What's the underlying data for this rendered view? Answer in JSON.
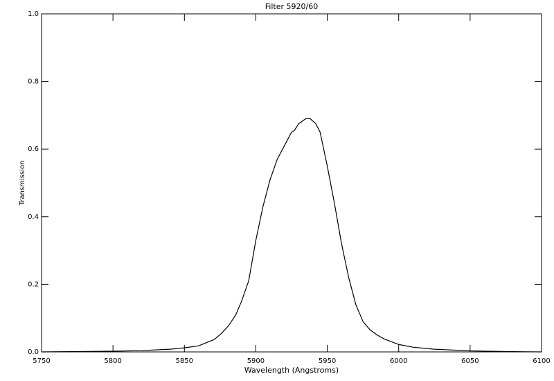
{
  "chart_data": {
    "type": "line",
    "title": "Filter 5920/60",
    "x_label": "Wavelength (Angstroms)",
    "y_label": "Transmission",
    "x": [
      5750,
      5800,
      5820,
      5840,
      5850,
      5860,
      5871,
      5876,
      5881,
      5886,
      5890,
      5895,
      5900,
      5905,
      5910,
      5915,
      5920,
      5925,
      5927,
      5930,
      5935,
      5938,
      5942,
      5945,
      5950,
      5955,
      5960,
      5965,
      5970,
      5975,
      5980,
      5985,
      5990,
      6000,
      6010,
      6025,
      6050,
      6075,
      6100
    ],
    "series": [
      {
        "name": "Transmission",
        "color": "#000000",
        "values": [
          0.0,
          0.002,
          0.004,
          0.008,
          0.012,
          0.018,
          0.037,
          0.055,
          0.078,
          0.11,
          0.15,
          0.21,
          0.33,
          0.43,
          0.51,
          0.57,
          0.61,
          0.65,
          0.655,
          0.675,
          0.69,
          0.69,
          0.675,
          0.65,
          0.55,
          0.44,
          0.32,
          0.22,
          0.14,
          0.09,
          0.065,
          0.05,
          0.038,
          0.022,
          0.014,
          0.008,
          0.003,
          0.001,
          0.0
        ]
      }
    ],
    "xlim": [
      5750,
      6100
    ],
    "xticks": [
      5750,
      5800,
      5850,
      5900,
      5950,
      6000,
      6050,
      6100
    ],
    "ylim": [
      0,
      1
    ],
    "yticks": [
      {
        "value": 0,
        "label": "0.0"
      },
      0.2,
      0.4,
      0.6,
      0.8,
      {
        "value": 1,
        "label": "1.0"
      }
    ],
    "grid": false
  }
}
